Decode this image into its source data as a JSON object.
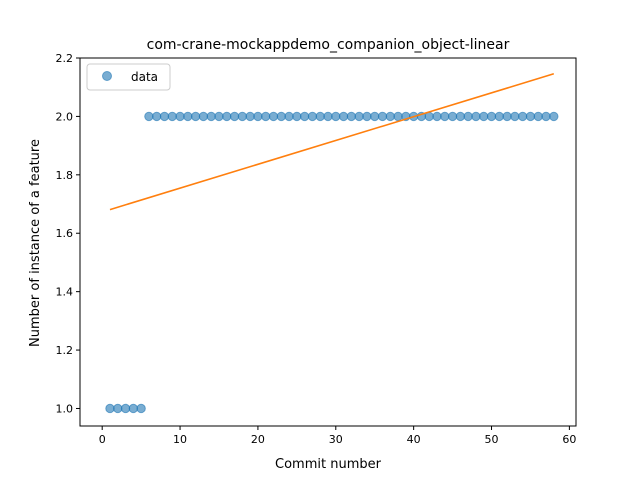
{
  "chart_data": {
    "type": "scatter",
    "title": "com-crane-mockappdemo_companion_object-linear",
    "xlabel": "Commit number",
    "ylabel": "Number of instance of a feature",
    "xlim": [
      -2.85,
      60.85
    ],
    "ylim": [
      0.94,
      2.2
    ],
    "xticks": [
      0,
      10,
      20,
      30,
      40,
      50,
      60
    ],
    "yticks": [
      1.0,
      1.2,
      1.4,
      1.6,
      1.8,
      2.0,
      2.2
    ],
    "xtick_labels": [
      "0",
      "10",
      "20",
      "30",
      "40",
      "50",
      "60"
    ],
    "ytick_labels": [
      "1.0",
      "1.2",
      "1.4",
      "1.6",
      "1.8",
      "2.0",
      "2.2"
    ],
    "legend": {
      "placement": "top-left",
      "entries": [
        "data"
      ]
    },
    "series": [
      {
        "name": "data",
        "kind": "scatter",
        "color": "#1f77b4",
        "x": [
          1,
          2,
          3,
          4,
          5,
          6,
          7,
          8,
          9,
          10,
          11,
          12,
          13,
          14,
          15,
          16,
          17,
          18,
          19,
          20,
          21,
          22,
          23,
          24,
          25,
          26,
          27,
          28,
          29,
          30,
          31,
          32,
          33,
          34,
          35,
          36,
          37,
          38,
          39,
          40,
          41,
          42,
          43,
          44,
          45,
          46,
          47,
          48,
          49,
          50,
          51,
          52,
          53,
          54,
          55,
          56,
          57,
          58
        ],
        "y": [
          1,
          1,
          1,
          1,
          1,
          2,
          2,
          2,
          2,
          2,
          2,
          2,
          2,
          2,
          2,
          2,
          2,
          2,
          2,
          2,
          2,
          2,
          2,
          2,
          2,
          2,
          2,
          2,
          2,
          2,
          2,
          2,
          2,
          2,
          2,
          2,
          2,
          2,
          2,
          2,
          2,
          2,
          2,
          2,
          2,
          2,
          2,
          2,
          2,
          2,
          2,
          2,
          2,
          2,
          2,
          2,
          2,
          2
        ]
      },
      {
        "kind": "line",
        "color": "#ff7f0e",
        "x": [
          1,
          58
        ],
        "y": [
          1.681,
          2.146
        ]
      }
    ]
  }
}
